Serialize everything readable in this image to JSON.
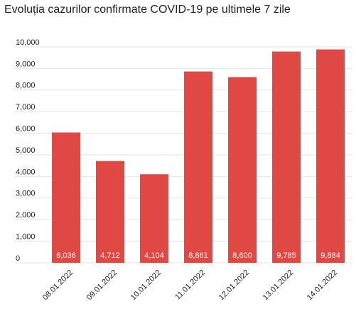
{
  "chart_data": {
    "type": "bar",
    "title": "Evoluția cazurilor confirmate COVID-19 pe ultimele 7 zile",
    "categories": [
      "08.01.2022",
      "09.01.2022",
      "10.01.2022",
      "11.01.2022",
      "12.01.2022",
      "13.01.2022",
      "14.01.2022"
    ],
    "values": [
      6036,
      4712,
      4104,
      8861,
      8600,
      9785,
      9884
    ],
    "value_labels": [
      "6,036",
      "4,712",
      "4,104",
      "8,861",
      "8,600",
      "9,785",
      "9,884"
    ],
    "color": "#e04844",
    "ylim": [
      0,
      10000
    ],
    "yticks": [
      0,
      {
        "value": 1000,
        "label": "1,000"
      },
      {
        "value": 2000,
        "label": "2,000"
      },
      {
        "value": 3000,
        "label": "3,000"
      },
      {
        "value": 4000,
        "label": "4,000"
      },
      {
        "value": 5000,
        "label": "5,000"
      },
      {
        "value": 6000,
        "label": "6,000"
      },
      {
        "value": 7000,
        "label": "7,000"
      },
      {
        "value": 8000,
        "label": "8,000"
      },
      {
        "value": 9000,
        "label": "9,000"
      },
      {
        "value": 10000,
        "label": "10,000"
      }
    ],
    "grid": true
  }
}
